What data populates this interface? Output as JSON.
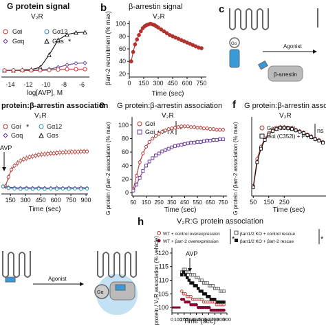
{
  "colors": {
    "red": "#b3322e",
    "purple": "#6a3d9a",
    "grey": "#555555",
    "black": "#111111",
    "teal": "#2b8aa0",
    "blue": "#3a9ad9"
  },
  "panels": {
    "a": {
      "title": "G protein signal",
      "subtitle": "V₂R",
      "legend": [
        {
          "label": "Gαi",
          "marker": "circle-red"
        },
        {
          "label": "Gα12",
          "marker": "circle-teal"
        },
        {
          "label": "Gαq",
          "marker": "diamond-purple"
        },
        {
          "label": "Gαs",
          "marker": "triangle-black",
          "sig": "*"
        }
      ],
      "xlabel": "log[AVP], M",
      "xticks": [
        "-14",
        "-12",
        "-10",
        "-8",
        "-6"
      ]
    },
    "b": {
      "letter": "b",
      "title": "β-arrestin signal",
      "subtitle": "V₂R",
      "ylabel": "βarr-2 recruitment (% max)",
      "xlabel": "Time (sec)"
    },
    "c": {
      "letter": "c",
      "agonist": "Agonist",
      "barr": "β-arrestin",
      "gprot": "Gα"
    },
    "d": {
      "title": "protein:β-arrestin association",
      "subtitle": "V₂R",
      "avp": "AVP",
      "xlabel": "Time (sec)",
      "legend": [
        {
          "label": "Gαi",
          "sig": "*"
        },
        {
          "label": "Gα12"
        },
        {
          "label": "Gαq"
        },
        {
          "label": "Gαs"
        }
      ]
    },
    "e": {
      "letter": "e",
      "title": "G protein:β-arrestin association",
      "subtitle": "V₂R",
      "ylabel": "G protein / βarr-2 association (% max)",
      "xlabel": "Time (sec)",
      "legend": [
        {
          "label": "Gαi"
        },
        {
          "label": "Gαi + PTX"
        }
      ],
      "sig": "*"
    },
    "f": {
      "letter": "f",
      "title": "G protein:β-arrestin associa",
      "subtitle": "V₂R",
      "ylabel": "G protein / βarr-2 association (% max)",
      "xlabel": "Time (sec)",
      "legend": [
        {
          "label": "Gαi (C352I)"
        },
        {
          "label": "Gαi (C352I) + PTX"
        }
      ],
      "sig": "ns"
    },
    "g": {
      "agonist": "Agonist",
      "gprot": "Gα"
    },
    "h": {
      "letter": "h",
      "title": "V₂R:G protein association",
      "avp": "AVP",
      "ylabel": "G protein / V₂R association (% vehicle)",
      "xlabel": "Time (sec)",
      "legend": [
        {
          "label": "WT + control overexpression"
        },
        {
          "label": "WT + βarr-2 overexpression"
        },
        {
          "label": "βarr1/2 KO + control rescue"
        },
        {
          "label": "βarr1/2 KO + βarr-2 rescue"
        }
      ],
      "sig": "*"
    }
  },
  "chart_data": [
    {
      "panel": "a",
      "type": "line",
      "xlim": [
        -15.5,
        -5.5
      ],
      "series": [
        {
          "name": "Gαs",
          "x": [
            -15,
            -14,
            -13,
            -12,
            -11,
            -10,
            -9,
            -8,
            -7,
            -6
          ],
          "y": [
            0,
            0,
            1,
            2,
            8,
            40,
            78,
            92,
            97,
            98
          ]
        },
        {
          "name": "Gαq",
          "x": [
            -15,
            -14,
            -13,
            -12,
            -11,
            -10,
            -9,
            -8,
            -7,
            -6
          ],
          "y": [
            0,
            0,
            0,
            0,
            1,
            3,
            8,
            14,
            18,
            19
          ]
        },
        {
          "name": "Gαi",
          "x": [
            -15,
            -14,
            -13,
            -12,
            -11,
            -10,
            -9,
            -8,
            -7,
            -6
          ],
          "y": [
            0,
            0,
            0,
            0,
            0,
            1,
            2,
            3,
            3,
            3
          ]
        }
      ]
    },
    {
      "panel": "b",
      "type": "line",
      "xticks": [
        0,
        150,
        300,
        450,
        600,
        750
      ],
      "yticks": [
        20,
        40,
        60,
        80,
        100
      ],
      "xlim": [
        0,
        800
      ],
      "ylim": [
        15,
        105
      ],
      "series": [
        {
          "name": "",
          "x": [
            20,
            40,
            60,
            80,
            100,
            120,
            140,
            160,
            180,
            200,
            220,
            240,
            260,
            280,
            300,
            330,
            360,
            390,
            420,
            450,
            480,
            510,
            540,
            570,
            600,
            630,
            660,
            690,
            720,
            750
          ],
          "y": [
            40,
            55,
            67,
            75,
            82,
            88,
            93,
            96,
            98,
            99,
            100,
            99,
            98,
            96,
            94,
            91,
            88,
            85,
            82,
            80,
            78,
            76,
            74,
            72,
            70,
            68,
            66,
            64,
            62,
            61
          ]
        }
      ]
    },
    {
      "panel": "d",
      "type": "line",
      "xticks": [
        150,
        300,
        450,
        600,
        750,
        900
      ],
      "xlim": [
        60,
        920
      ],
      "ylim": [
        -20,
        130
      ],
      "series": [
        {
          "name": "Gαi",
          "x": [
            75,
            100,
            130,
            160,
            190,
            220,
            250,
            280,
            310,
            340,
            370,
            400,
            430,
            460,
            490,
            520,
            550,
            580,
            610,
            640,
            670,
            700,
            730,
            760,
            790,
            820,
            850,
            880,
            910
          ],
          "y": [
            0,
            0,
            25,
            45,
            55,
            62,
            68,
            72,
            75,
            78,
            80,
            82,
            84,
            85,
            86,
            87,
            88,
            88,
            89,
            90,
            90,
            91,
            91,
            92,
            92,
            92,
            93,
            93,
            93
          ]
        },
        {
          "name": "Gαq",
          "x": [
            75,
            130,
            190,
            250,
            310,
            370,
            430,
            490,
            550,
            610,
            670,
            730,
            790,
            850,
            910
          ],
          "y": [
            0,
            -2,
            -3,
            -4,
            -3,
            -4,
            -3,
            -4,
            -4,
            -3,
            -4,
            -3,
            -4,
            -3,
            -4
          ]
        },
        {
          "name": "Gα12",
          "x": [
            75,
            130,
            190,
            250,
            310,
            370,
            430,
            490,
            550,
            610,
            670,
            730,
            790,
            850,
            910
          ],
          "y": [
            0,
            -5,
            -6,
            -7,
            -6,
            -7,
            -6,
            -7,
            -6,
            -7,
            -6,
            -7,
            -6,
            -7,
            -6
          ]
        }
      ]
    },
    {
      "panel": "e",
      "type": "line",
      "xticks": [
        50,
        150,
        250,
        350,
        450,
        550,
        650,
        750
      ],
      "yticks": [
        0,
        20,
        40,
        60,
        80,
        100
      ],
      "xlim": [
        40,
        780
      ],
      "ylim": [
        -5,
        112
      ],
      "series": [
        {
          "name": "Gαi",
          "x": [
            50,
            75,
            100,
            125,
            150,
            175,
            200,
            225,
            250,
            275,
            300,
            325,
            350,
            375,
            400,
            425,
            450,
            475,
            500,
            525,
            550,
            575,
            600,
            625,
            650,
            675,
            700,
            725,
            750
          ],
          "y": [
            5,
            25,
            45,
            58,
            68,
            75,
            80,
            84,
            87,
            90,
            92,
            94,
            95,
            96,
            97,
            98,
            98,
            98,
            97,
            97,
            96,
            96,
            95,
            95,
            94,
            94,
            93,
            93,
            93
          ]
        },
        {
          "name": "Gαi + PTX",
          "x": [
            50,
            75,
            100,
            125,
            150,
            175,
            200,
            225,
            250,
            275,
            300,
            325,
            350,
            375,
            400,
            425,
            450,
            475,
            500,
            525,
            550,
            575,
            600,
            625,
            650,
            675,
            700,
            725,
            750
          ],
          "y": [
            3,
            12,
            22,
            32,
            40,
            46,
            51,
            55,
            58,
            61,
            63,
            65,
            67,
            69,
            70,
            71,
            72,
            73,
            74,
            74,
            75,
            75,
            76,
            77,
            77,
            78,
            78,
            79,
            79
          ]
        }
      ]
    },
    {
      "panel": "f",
      "type": "line",
      "xticks": [
        50,
        150,
        250
      ],
      "xlim": [
        40,
        520
      ],
      "ylim": [
        -5,
        112
      ],
      "series": [
        {
          "name": "Gαi (C352I)",
          "x": [
            50,
            75,
            100,
            125,
            150,
            175,
            200,
            225,
            250,
            275,
            300,
            325,
            350,
            375,
            400,
            425,
            450,
            475,
            500
          ],
          "y": [
            10,
            50,
            68,
            80,
            88,
            93,
            96,
            97,
            97,
            96,
            95,
            93,
            91,
            89,
            86,
            83,
            80,
            78,
            75
          ]
        },
        {
          "name": "Gαi (C352I) + PTX",
          "x": [
            50,
            75,
            100,
            125,
            150,
            175,
            200,
            225,
            250,
            275,
            300,
            325,
            350,
            375,
            400,
            425,
            450,
            475,
            500
          ],
          "y": [
            8,
            45,
            65,
            78,
            86,
            91,
            94,
            96,
            96,
            95,
            94,
            92,
            90,
            88,
            85,
            82,
            79,
            77,
            74
          ]
        }
      ]
    },
    {
      "panel": "h",
      "type": "line",
      "xticks": [
        0,
        100,
        200,
        300,
        400,
        500,
        600,
        700,
        800,
        900
      ],
      "yticks": [
        100,
        105,
        110,
        115,
        120
      ],
      "xlim": [
        0,
        900
      ],
      "ylim": [
        98,
        122
      ],
      "series": [
        {
          "name": "βarr1/2 KO + control rescue",
          "x": [
            160,
            190,
            220,
            250,
            280,
            310,
            340,
            370,
            400,
            430,
            460,
            490,
            520,
            550,
            580,
            610,
            640,
            670,
            700,
            730,
            760,
            790,
            820,
            850
          ],
          "y": [
            113,
            114,
            114,
            113,
            113,
            112,
            112,
            112,
            111,
            111,
            110,
            110,
            109,
            109,
            109,
            108,
            108,
            108,
            107,
            107,
            107,
            106,
            106,
            106
          ]
        },
        {
          "name": "βarr1/2 KO + βarr-2 rescue",
          "x": [
            160,
            190,
            220,
            250,
            280,
            310,
            340,
            370,
            400,
            430,
            460,
            490,
            520,
            550,
            580,
            610,
            640,
            670,
            700,
            730,
            760,
            790,
            820,
            850
          ],
          "y": [
            112,
            113,
            112,
            111,
            110,
            109,
            109,
            108,
            108,
            107,
            106,
            106,
            105,
            105,
            104,
            104,
            103,
            103,
            103,
            102,
            102,
            102,
            102,
            102
          ]
        },
        {
          "name": "WT + control overexpression",
          "x": [
            160,
            190,
            220,
            250,
            280,
            310,
            340,
            370,
            400,
            430,
            460,
            490,
            520,
            550,
            580,
            610,
            640,
            670,
            700,
            730,
            760,
            790,
            820,
            850
          ],
          "y": [
            106,
            105,
            105,
            104,
            104,
            104,
            103,
            103,
            103,
            103,
            103,
            103,
            102,
            102,
            102,
            102,
            102,
            102,
            102,
            101,
            101,
            101,
            101,
            101
          ]
        },
        {
          "name": "WT + βarr-2 overexpression",
          "x": [
            160,
            190,
            220,
            250,
            280,
            310,
            340,
            370,
            400,
            430,
            460,
            490,
            520,
            550,
            580,
            610,
            640,
            670,
            700,
            730,
            760,
            790,
            820,
            850
          ],
          "y": [
            103,
            103,
            102,
            102,
            102,
            101,
            101,
            101,
            101,
            100,
            100,
            100,
            100,
            100,
            100,
            100,
            99,
            99,
            99,
            99,
            99,
            99,
            99,
            99
          ]
        }
      ]
    }
  ]
}
